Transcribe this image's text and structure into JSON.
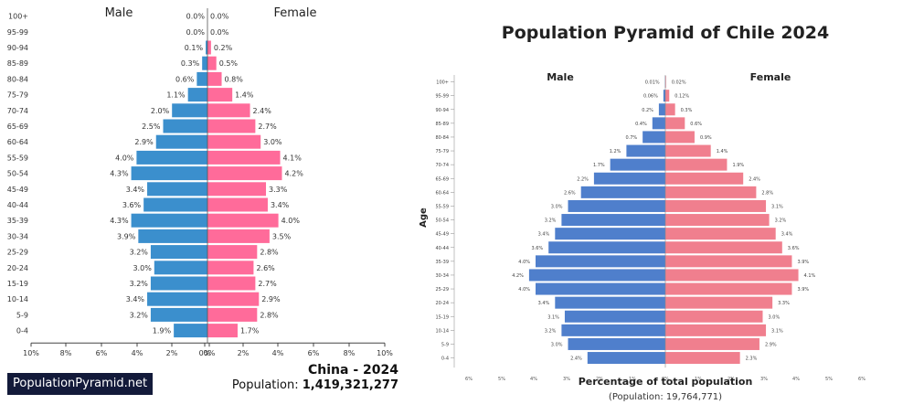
{
  "chart_data": [
    {
      "type": "bar",
      "subtype": "population-pyramid",
      "title": "China - 2024",
      "population_label": "Population:",
      "population_value": "1,419,321,277",
      "brand": "PopulationPyramid.net",
      "male_label": "Male",
      "female_label": "Female",
      "categories": [
        "100+",
        "95-99",
        "90-94",
        "85-89",
        "80-84",
        "75-79",
        "70-74",
        "65-69",
        "60-64",
        "55-59",
        "50-54",
        "45-49",
        "40-44",
        "35-39",
        "30-34",
        "25-29",
        "20-24",
        "15-19",
        "10-14",
        "5-9",
        "0-4"
      ],
      "series": [
        {
          "name": "Male",
          "values": [
            0.0,
            0.0,
            0.1,
            0.3,
            0.6,
            1.1,
            2.0,
            2.5,
            2.9,
            4.0,
            4.3,
            3.4,
            3.6,
            4.3,
            3.9,
            3.2,
            3.0,
            3.2,
            3.4,
            3.2,
            1.9
          ]
        },
        {
          "name": "Female",
          "values": [
            0.0,
            0.0,
            0.2,
            0.5,
            0.8,
            1.4,
            2.4,
            2.7,
            3.0,
            4.1,
            4.2,
            3.3,
            3.4,
            4.0,
            3.5,
            2.8,
            2.6,
            2.7,
            2.9,
            2.8,
            1.7
          ]
        }
      ],
      "x_ticks": [
        "10%",
        "8%",
        "6%",
        "4%",
        "2%",
        "0%",
        "0%",
        "2%",
        "4%",
        "6%",
        "8%",
        "10%"
      ],
      "xlim": [
        -10,
        10
      ],
      "colors": {
        "male": "#3b8fcd",
        "female": "#ff6b9a"
      }
    },
    {
      "type": "bar",
      "subtype": "population-pyramid",
      "title": "Population Pyramid of Chile  2024",
      "male_label": "Male",
      "female_label": "Female",
      "ylabel": "Age",
      "xlabel": "Percentage of total population",
      "population_note": "(Population: 19,764,771)",
      "categories": [
        "100+",
        "95-99",
        "90-94",
        "85-89",
        "80-84",
        "75-79",
        "70-74",
        "65-69",
        "60-64",
        "55-59",
        "50-54",
        "45-49",
        "40-44",
        "35-39",
        "30-34",
        "25-29",
        "20-24",
        "15-19",
        "10-14",
        "5-9",
        "0-4"
      ],
      "series": [
        {
          "name": "Male",
          "values": [
            0.01,
            0.06,
            0.2,
            0.4,
            0.7,
            1.2,
            1.7,
            2.2,
            2.6,
            3.0,
            3.2,
            3.4,
            3.6,
            4.0,
            4.2,
            4.0,
            3.4,
            3.1,
            3.2,
            3.0,
            2.4
          ]
        },
        {
          "name": "Female",
          "values": [
            0.02,
            0.12,
            0.3,
            0.6,
            0.9,
            1.4,
            1.9,
            2.4,
            2.8,
            3.1,
            3.2,
            3.4,
            3.6,
            3.9,
            4.1,
            3.9,
            3.3,
            3.0,
            3.1,
            2.9,
            2.3
          ]
        }
      ],
      "value_labels_male": [
        "0.01%",
        "0.06%",
        "0.2%",
        "0.4%",
        "0.7%",
        "1.2%",
        "1.7%",
        "2.2%",
        "2.6%",
        "3.0%",
        "3.2%",
        "3.4%",
        "3.6%",
        "4.0%",
        "4.2%",
        "4.0%",
        "3.4%",
        "3.1%",
        "3.2%",
        "3.0%",
        "2.4%"
      ],
      "value_labels_female": [
        "0.02%",
        "0.12%",
        "0.3%",
        "0.6%",
        "0.9%",
        "1.4%",
        "1.9%",
        "2.4%",
        "2.8%",
        "3.1%",
        "3.2%",
        "3.4%",
        "3.6%",
        "3.9%",
        "4.1%",
        "3.9%",
        "3.3%",
        "3.0%",
        "3.1%",
        "2.9%",
        "2.3%"
      ],
      "x_ticks": [
        "6%",
        "5%",
        "4%",
        "3%",
        "2%",
        "1%",
        "0%",
        "1%",
        "2%",
        "3%",
        "4%",
        "5%",
        "6%"
      ],
      "xlim": [
        -6,
        6
      ],
      "colors": {
        "male": "#4f7fcc",
        "female": "#f07f8e"
      }
    }
  ]
}
